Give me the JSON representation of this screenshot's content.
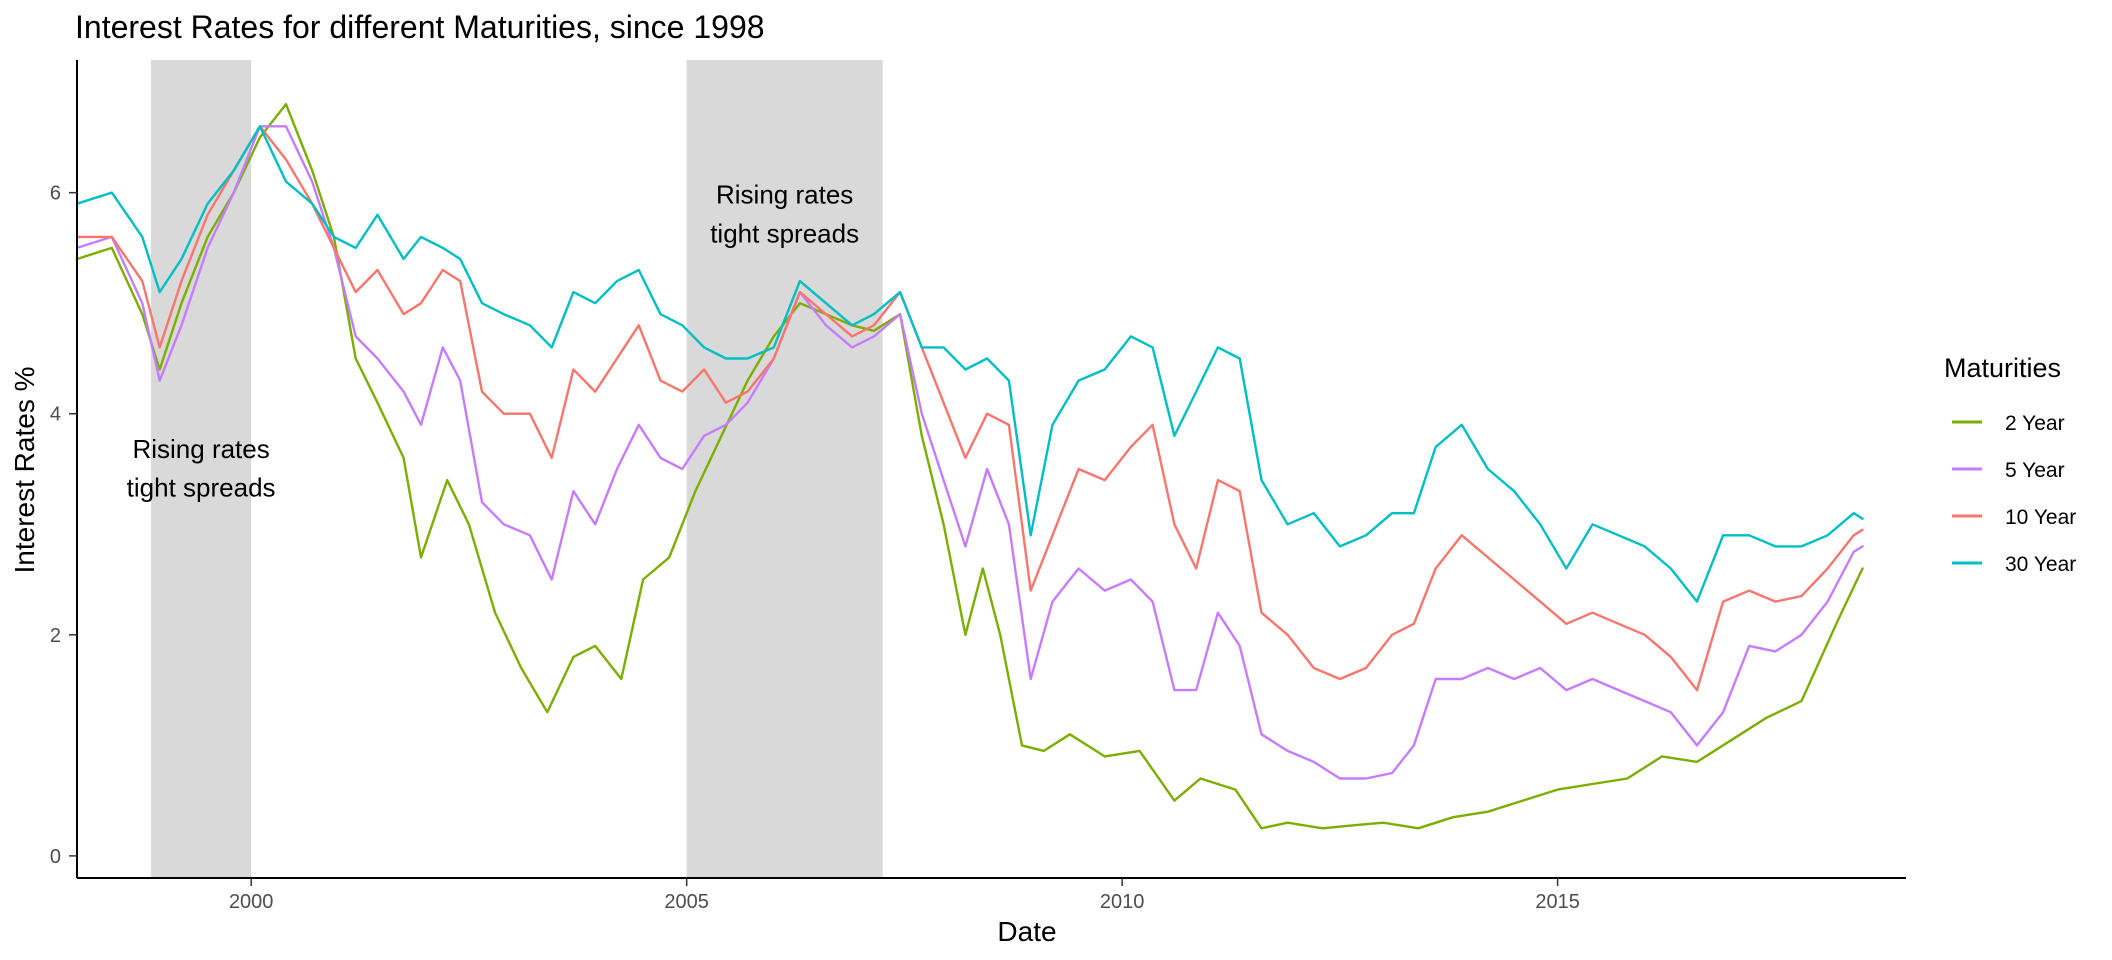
{
  "chart_data": {
    "type": "line",
    "title": "Interest Rates for different Maturities, since 1998",
    "xlabel": "Date",
    "ylabel": "Interest Rates %",
    "xlim": [
      1998.0,
      2019.0
    ],
    "ylim": [
      -0.2,
      7.2
    ],
    "x_ticks": [
      2000,
      2005,
      2010,
      2015
    ],
    "x_tick_labels": [
      "2000",
      "2005",
      "2010",
      "2015"
    ],
    "y_ticks": [
      0,
      2,
      4,
      6
    ],
    "y_tick_labels": [
      "0",
      "2",
      "4",
      "6"
    ],
    "legend": {
      "title": "Maturities",
      "placement": "right"
    },
    "shaded_periods": [
      {
        "start": 1998.85,
        "end": 2000.0,
        "label_lines": [
          "Rising rates",
          "tight spreads"
        ],
        "label_y_top": 3.6,
        "label_y_bottom": 3.25
      },
      {
        "start": 2005.0,
        "end": 2007.25,
        "label_lines": [
          "Rising rates",
          "tight spreads"
        ],
        "label_y_top": 5.9,
        "label_y_bottom": 5.55
      }
    ],
    "series": [
      {
        "name": "2 Year",
        "color": "#7CAE00",
        "x": [
          1998.0,
          1998.4,
          1998.75,
          1998.95,
          1999.2,
          1999.5,
          1999.8,
          2000.1,
          2000.4,
          2000.7,
          2000.95,
          2001.2,
          2001.45,
          2001.75,
          2001.95,
          2002.25,
          2002.5,
          2002.8,
          2003.1,
          2003.4,
          2003.7,
          2003.95,
          2004.25,
          2004.5,
          2004.8,
          2005.1,
          2005.4,
          2005.7,
          2006.0,
          2006.3,
          2006.6,
          2006.9,
          2007.15,
          2007.45,
          2007.7,
          2007.95,
          2008.2,
          2008.4,
          2008.6,
          2008.85,
          2009.1,
          2009.4,
          2009.8,
          2010.2,
          2010.6,
          2010.9,
          2011.3,
          2011.6,
          2011.9,
          2012.3,
          2012.7,
          2013.0,
          2013.4,
          2013.8,
          2014.2,
          2014.6,
          2015.0,
          2015.4,
          2015.8,
          2016.2,
          2016.6,
          2017.0,
          2017.4,
          2017.8,
          2018.2,
          2018.5
        ],
        "values": [
          5.4,
          5.5,
          4.9,
          4.4,
          5.0,
          5.6,
          6.0,
          6.5,
          6.8,
          6.2,
          5.6,
          4.5,
          4.1,
          3.6,
          2.7,
          3.4,
          3.0,
          2.2,
          1.7,
          1.3,
          1.8,
          1.9,
          1.6,
          2.5,
          2.7,
          3.3,
          3.8,
          4.3,
          4.7,
          5.0,
          4.9,
          4.8,
          4.75,
          4.9,
          3.8,
          3.0,
          2.0,
          2.6,
          2.0,
          1.0,
          0.95,
          1.1,
          0.9,
          0.95,
          0.5,
          0.7,
          0.6,
          0.25,
          0.3,
          0.25,
          0.28,
          0.3,
          0.25,
          0.35,
          0.4,
          0.5,
          0.6,
          0.65,
          0.7,
          0.9,
          0.85,
          1.05,
          1.25,
          1.4,
          2.1,
          2.6
        ]
      },
      {
        "name": "5 Year",
        "color": "#C77CFF",
        "x": [
          1998.0,
          1998.4,
          1998.75,
          1998.95,
          1999.2,
          1999.5,
          1999.8,
          2000.1,
          2000.4,
          2000.7,
          2000.95,
          2001.2,
          2001.45,
          2001.75,
          2001.95,
          2002.2,
          2002.4,
          2002.65,
          2002.9,
          2003.2,
          2003.45,
          2003.7,
          2003.95,
          2004.2,
          2004.45,
          2004.7,
          2004.95,
          2005.2,
          2005.45,
          2005.7,
          2006.0,
          2006.3,
          2006.6,
          2006.9,
          2007.15,
          2007.45,
          2007.7,
          2007.95,
          2008.2,
          2008.45,
          2008.7,
          2008.95,
          2009.2,
          2009.5,
          2009.8,
          2010.1,
          2010.35,
          2010.6,
          2010.85,
          2011.1,
          2011.35,
          2011.6,
          2011.9,
          2012.2,
          2012.5,
          2012.8,
          2013.1,
          2013.35,
          2013.6,
          2013.9,
          2014.2,
          2014.5,
          2014.8,
          2015.1,
          2015.4,
          2015.7,
          2016.0,
          2016.3,
          2016.6,
          2016.9,
          2017.2,
          2017.5,
          2017.8,
          2018.1,
          2018.4,
          2018.5
        ],
        "values": [
          5.5,
          5.6,
          5.0,
          4.3,
          4.8,
          5.5,
          6.0,
          6.6,
          6.6,
          6.1,
          5.5,
          4.7,
          4.5,
          4.2,
          3.9,
          4.6,
          4.3,
          3.2,
          3.0,
          2.9,
          2.5,
          3.3,
          3.0,
          3.5,
          3.9,
          3.6,
          3.5,
          3.8,
          3.9,
          4.1,
          4.5,
          5.1,
          4.8,
          4.6,
          4.7,
          4.9,
          4.0,
          3.4,
          2.8,
          3.5,
          3.0,
          1.6,
          2.3,
          2.6,
          2.4,
          2.5,
          2.3,
          1.5,
          1.5,
          2.2,
          1.9,
          1.1,
          0.95,
          0.85,
          0.7,
          0.7,
          0.75,
          1.0,
          1.6,
          1.6,
          1.7,
          1.6,
          1.7,
          1.5,
          1.6,
          1.5,
          1.4,
          1.3,
          1.0,
          1.3,
          1.9,
          1.85,
          2.0,
          2.3,
          2.75,
          2.8
        ]
      },
      {
        "name": "10 Year",
        "color": "#F8766D",
        "x": [
          1998.0,
          1998.4,
          1998.75,
          1998.95,
          1999.2,
          1999.5,
          1999.8,
          2000.1,
          2000.4,
          2000.7,
          2000.95,
          2001.2,
          2001.45,
          2001.75,
          2001.95,
          2002.2,
          2002.4,
          2002.65,
          2002.9,
          2003.2,
          2003.45,
          2003.7,
          2003.95,
          2004.2,
          2004.45,
          2004.7,
          2004.95,
          2005.2,
          2005.45,
          2005.7,
          2006.0,
          2006.3,
          2006.6,
          2006.9,
          2007.15,
          2007.45,
          2007.7,
          2007.95,
          2008.2,
          2008.45,
          2008.7,
          2008.95,
          2009.2,
          2009.5,
          2009.8,
          2010.1,
          2010.35,
          2010.6,
          2010.85,
          2011.1,
          2011.35,
          2011.6,
          2011.9,
          2012.2,
          2012.5,
          2012.8,
          2013.1,
          2013.35,
          2013.6,
          2013.9,
          2014.2,
          2014.5,
          2014.8,
          2015.1,
          2015.4,
          2015.7,
          2016.0,
          2016.3,
          2016.6,
          2016.9,
          2017.2,
          2017.5,
          2017.8,
          2018.1,
          2018.4,
          2018.5
        ],
        "values": [
          5.6,
          5.6,
          5.2,
          4.6,
          5.2,
          5.8,
          6.2,
          6.6,
          6.3,
          5.9,
          5.5,
          5.1,
          5.3,
          4.9,
          5.0,
          5.3,
          5.2,
          4.2,
          4.0,
          4.0,
          3.6,
          4.4,
          4.2,
          4.5,
          4.8,
          4.3,
          4.2,
          4.4,
          4.1,
          4.2,
          4.5,
          5.1,
          4.9,
          4.7,
          4.8,
          5.1,
          4.6,
          4.1,
          3.6,
          4.0,
          3.9,
          2.4,
          2.9,
          3.5,
          3.4,
          3.7,
          3.9,
          3.0,
          2.6,
          3.4,
          3.3,
          2.2,
          2.0,
          1.7,
          1.6,
          1.7,
          2.0,
          2.1,
          2.6,
          2.9,
          2.7,
          2.5,
          2.3,
          2.1,
          2.2,
          2.1,
          2.0,
          1.8,
          1.5,
          2.3,
          2.4,
          2.3,
          2.35,
          2.6,
          2.9,
          2.95
        ]
      },
      {
        "name": "30 Year",
        "color": "#00BFC4",
        "x": [
          1998.0,
          1998.4,
          1998.75,
          1998.95,
          1999.2,
          1999.5,
          1999.8,
          2000.1,
          2000.4,
          2000.7,
          2000.95,
          2001.2,
          2001.45,
          2001.75,
          2001.95,
          2002.2,
          2002.4,
          2002.65,
          2002.9,
          2003.2,
          2003.45,
          2003.7,
          2003.95,
          2004.2,
          2004.45,
          2004.7,
          2004.95,
          2005.2,
          2005.45,
          2005.7,
          2006.0,
          2006.3,
          2006.6,
          2006.9,
          2007.15,
          2007.45,
          2007.7,
          2007.95,
          2008.2,
          2008.45,
          2008.7,
          2008.95,
          2009.2,
          2009.5,
          2009.8,
          2010.1,
          2010.35,
          2010.6,
          2010.85,
          2011.1,
          2011.35,
          2011.6,
          2011.9,
          2012.2,
          2012.5,
          2012.8,
          2013.1,
          2013.35,
          2013.6,
          2013.9,
          2014.2,
          2014.5,
          2014.8,
          2015.1,
          2015.4,
          2015.7,
          2016.0,
          2016.3,
          2016.6,
          2016.9,
          2017.2,
          2017.5,
          2017.8,
          2018.1,
          2018.4,
          2018.5
        ],
        "values": [
          5.9,
          6.0,
          5.6,
          5.1,
          5.4,
          5.9,
          6.2,
          6.6,
          6.1,
          5.9,
          5.6,
          5.5,
          5.8,
          5.4,
          5.6,
          5.5,
          5.4,
          5.0,
          4.9,
          4.8,
          4.6,
          5.1,
          5.0,
          5.2,
          5.3,
          4.9,
          4.8,
          4.6,
          4.5,
          4.5,
          4.6,
          5.2,
          5.0,
          4.8,
          4.9,
          5.1,
          4.6,
          4.6,
          4.4,
          4.5,
          4.3,
          2.9,
          3.9,
          4.3,
          4.4,
          4.7,
          4.6,
          3.8,
          4.2,
          4.6,
          4.5,
          3.4,
          3.0,
          3.1,
          2.8,
          2.9,
          3.1,
          3.1,
          3.7,
          3.9,
          3.5,
          3.3,
          3.0,
          2.6,
          3.0,
          2.9,
          2.8,
          2.6,
          2.3,
          2.9,
          2.9,
          2.8,
          2.8,
          2.9,
          3.1,
          3.05
        ]
      }
    ]
  }
}
